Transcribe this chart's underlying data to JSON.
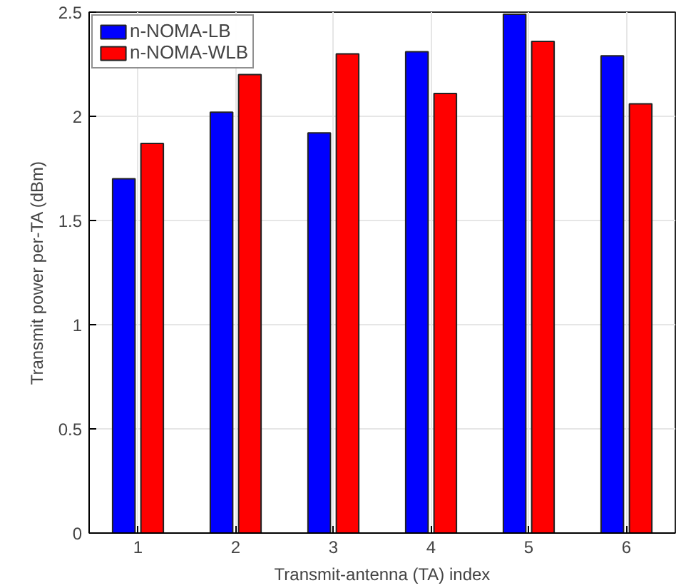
{
  "chart_data": {
    "type": "bar",
    "xlabel": "Transmit-antenna (TA) index",
    "ylabel": "Transmit power per-TA (dBm)",
    "categories": [
      "1",
      "2",
      "3",
      "4",
      "5",
      "6"
    ],
    "series": [
      {
        "name": "n-NOMA-LB",
        "color": "#0000ff",
        "values": [
          1.7,
          2.02,
          1.92,
          2.31,
          2.49,
          2.29
        ]
      },
      {
        "name": "n-NOMA-WLB",
        "color": "#ff0000",
        "values": [
          1.87,
          2.2,
          2.3,
          2.11,
          2.36,
          2.06
        ]
      }
    ],
    "ylim": [
      0,
      2.5
    ],
    "yticks": [
      0,
      0.5,
      1,
      1.5,
      2,
      2.5
    ],
    "grid": true,
    "legend": "top left"
  }
}
